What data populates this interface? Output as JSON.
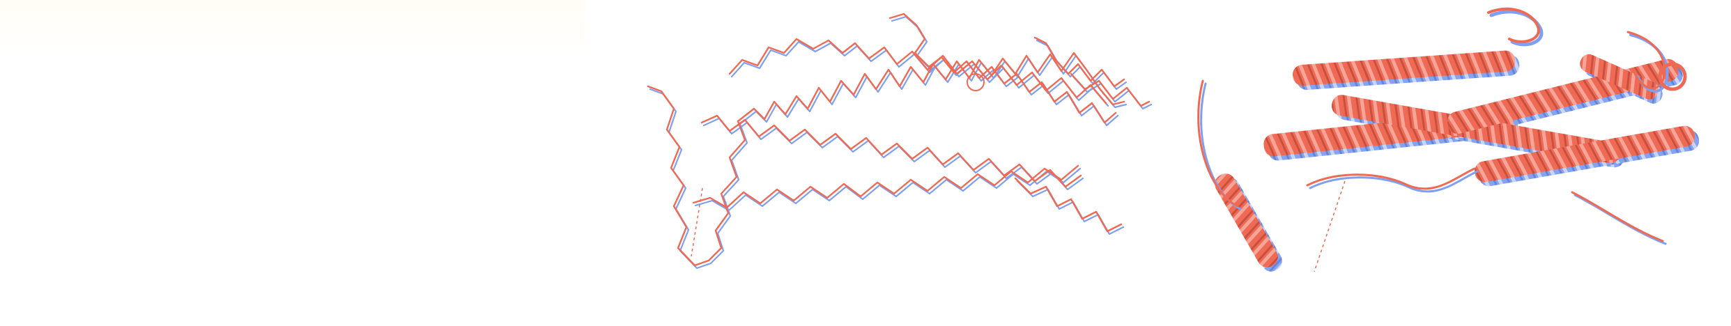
{
  "panels": [
    {
      "id": "blank",
      "style": "empty"
    },
    {
      "id": "trace",
      "style": "c-alpha-trace"
    },
    {
      "id": "cartoon",
      "style": "ribbon-cartoon"
    }
  ],
  "colors": {
    "background": "#ffffff",
    "structure_a": "#ef6a55",
    "structure_b": "#7f9ff0",
    "tint": "#fffbf0"
  }
}
